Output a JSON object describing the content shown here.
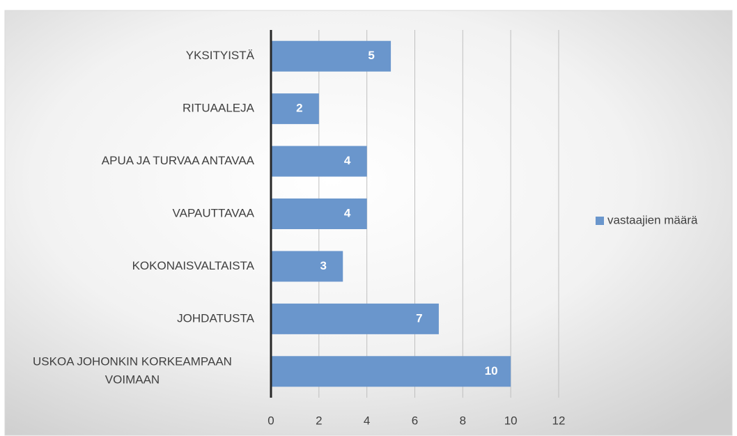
{
  "chart_data": {
    "type": "bar",
    "orientation": "horizontal",
    "categories": [
      "YKSITYISTÄ",
      "RITUAALEJA",
      "APUA JA TURVAA ANTAVAA",
      "VAPAUTTAVAA",
      "KOKONAISVALTAISTA",
      "JOHDATUSTA",
      "USKOA JOHONKIN KORKEAMPAAN VOIMAAN"
    ],
    "series": [
      {
        "name": "vastaajien määrä",
        "color": "#6a96cc",
        "values": [
          5,
          2,
          4,
          4,
          3,
          7,
          10
        ]
      }
    ],
    "xlim": [
      0,
      12
    ],
    "xticks": [
      0,
      2,
      4,
      6,
      8,
      10,
      12
    ],
    "grid": true,
    "legend": "right"
  }
}
